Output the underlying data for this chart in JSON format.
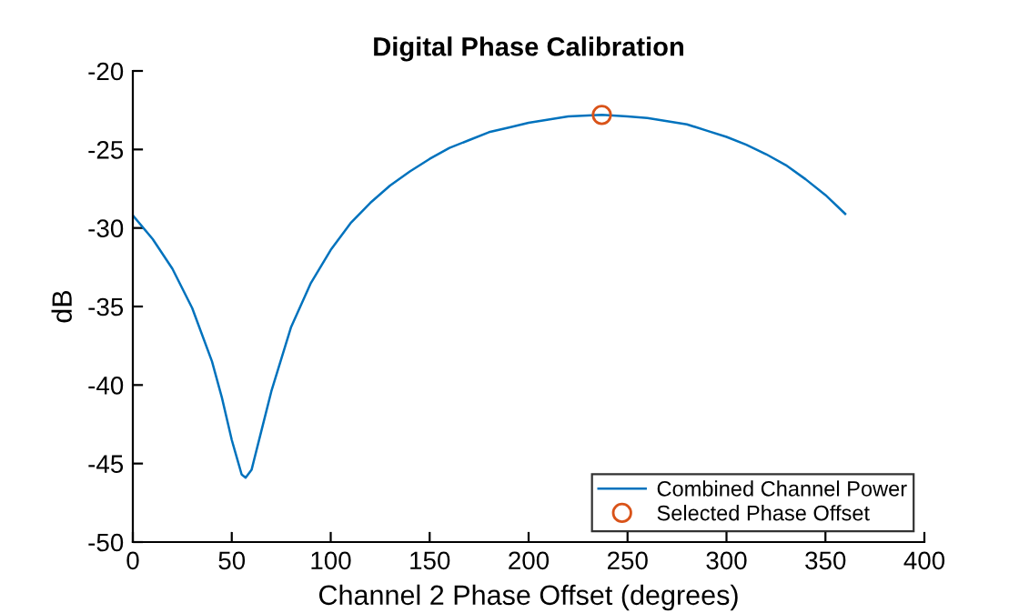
{
  "chart_data": {
    "type": "line",
    "title": "Digital Phase Calibration",
    "xlabel": "Channel 2 Phase Offset (degrees)",
    "ylabel": "dB",
    "xlim": [
      0,
      400
    ],
    "xticks": [
      0,
      50,
      100,
      150,
      200,
      250,
      300,
      350,
      400
    ],
    "ylim": [
      -50,
      -20
    ],
    "yticks": [
      -50,
      -45,
      -40,
      -35,
      -30,
      -25,
      -20
    ],
    "grid": false,
    "legend": "bottom right",
    "series": [
      {
        "name": "Combined Channel Power",
        "color": "#0072bd",
        "marker": "none",
        "x": [
          0,
          10,
          20,
          30,
          40,
          45,
          50,
          55,
          57,
          60,
          65,
          70,
          80,
          90,
          100,
          110,
          120,
          130,
          140,
          150,
          160,
          170,
          180,
          190,
          200,
          210,
          220,
          237,
          250,
          260,
          270,
          280,
          290,
          300,
          310,
          320,
          330,
          340,
          350,
          360
        ],
        "values": [
          -29.2,
          -30.7,
          -32.6,
          -35.1,
          -38.5,
          -40.8,
          -43.5,
          -45.7,
          -45.9,
          -45.4,
          -42.9,
          -40.4,
          -36.3,
          -33.5,
          -31.4,
          -29.7,
          -28.4,
          -27.3,
          -26.4,
          -25.6,
          -24.9,
          -24.4,
          -23.9,
          -23.6,
          -23.3,
          -23.1,
          -22.9,
          -22.8,
          -22.9,
          -23.0,
          -23.2,
          -23.4,
          -23.8,
          -24.2,
          -24.7,
          -25.3,
          -26.0,
          -26.9,
          -27.9,
          -29.1
        ]
      },
      {
        "name": "Selected Phase Offset",
        "type": "scatter",
        "color": "#d95319",
        "marker": "circle",
        "x": [
          237
        ],
        "values": [
          -22.8
        ]
      }
    ]
  }
}
